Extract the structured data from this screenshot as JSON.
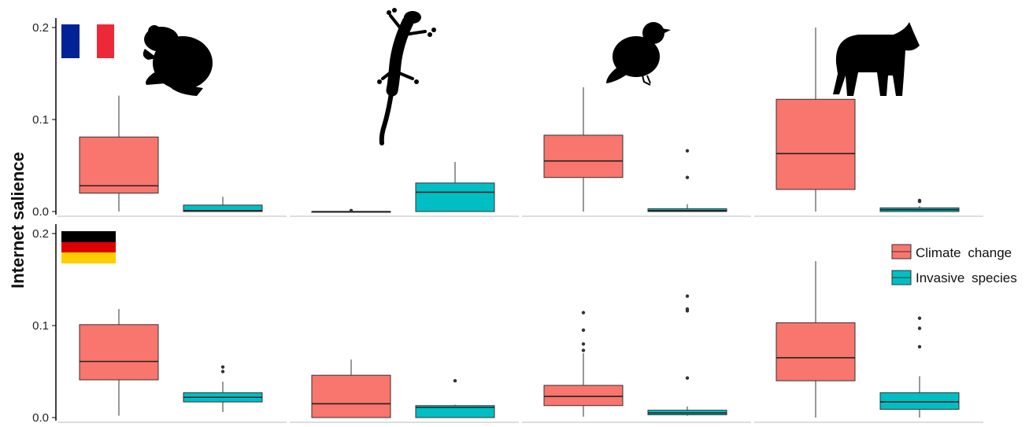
{
  "chart_data": {
    "type": "boxplot",
    "ylabel": "Internet salience",
    "ylim": [
      0,
      0.2
    ],
    "yticks": [
      0.0,
      0.1,
      0.2
    ],
    "ytick_labels": [
      "0.0",
      "0.1",
      "0.2"
    ],
    "colors": {
      "Climate change": "#F8766D",
      "Invasive species": "#00BFC4"
    },
    "legend": {
      "placement": "right, bottom row",
      "entries": [
        "Climate change",
        "Invasive species"
      ]
    },
    "rows": [
      {
        "flag": "France",
        "flag_colors": [
          "#002395",
          "#FFFFFF",
          "#ED2939"
        ]
      },
      {
        "flag": "Germany",
        "flag_colors": [
          "#000000",
          "#DD0000",
          "#FFCE00"
        ]
      }
    ],
    "columns": [
      {
        "icon": "frog-icon"
      },
      {
        "icon": "lizard-icon"
      },
      {
        "icon": "bird-icon"
      },
      {
        "icon": "wolf-icon"
      }
    ],
    "panels": [
      {
        "row": 0,
        "col": 0,
        "boxes": [
          {
            "series": "Climate change",
            "min": 0.0,
            "q1": 0.02,
            "median": 0.028,
            "q3": 0.081,
            "max": 0.126,
            "outliers": []
          },
          {
            "series": "Invasive species",
            "min": 0.0,
            "q1": 0.0,
            "median": 0.001,
            "q3": 0.007,
            "max": 0.016,
            "outliers": []
          }
        ]
      },
      {
        "row": 0,
        "col": 1,
        "boxes": [
          {
            "series": "Climate change",
            "min": 0.0,
            "q1": 0.0,
            "median": 0.0,
            "q3": 0.0,
            "max": 0.0,
            "outliers": [
              0.001
            ]
          },
          {
            "series": "Invasive species",
            "min": 0.0,
            "q1": 0.0,
            "median": 0.021,
            "q3": 0.031,
            "max": 0.054,
            "outliers": []
          }
        ]
      },
      {
        "row": 0,
        "col": 2,
        "boxes": [
          {
            "series": "Climate change",
            "min": 0.0,
            "q1": 0.037,
            "median": 0.055,
            "q3": 0.083,
            "max": 0.135,
            "outliers": []
          },
          {
            "series": "Invasive species",
            "min": 0.0,
            "q1": 0.0,
            "median": 0.001,
            "q3": 0.003,
            "max": 0.008,
            "outliers": [
              0.037,
              0.066
            ]
          }
        ]
      },
      {
        "row": 0,
        "col": 3,
        "boxes": [
          {
            "series": "Climate change",
            "min": 0.0,
            "q1": 0.024,
            "median": 0.063,
            "q3": 0.122,
            "max": 0.2,
            "outliers": []
          },
          {
            "series": "Invasive species",
            "min": 0.0,
            "q1": 0.0,
            "median": 0.002,
            "q3": 0.004,
            "max": 0.006,
            "outliers": [
              0.011,
              0.012
            ]
          }
        ]
      },
      {
        "row": 1,
        "col": 0,
        "boxes": [
          {
            "series": "Climate change",
            "min": 0.002,
            "q1": 0.041,
            "median": 0.061,
            "q3": 0.101,
            "max": 0.118,
            "outliers": []
          },
          {
            "series": "Invasive species",
            "min": 0.006,
            "q1": 0.017,
            "median": 0.022,
            "q3": 0.027,
            "max": 0.039,
            "outliers": [
              0.05,
              0.055
            ]
          }
        ]
      },
      {
        "row": 1,
        "col": 1,
        "boxes": [
          {
            "series": "Climate change",
            "min": 0.0,
            "q1": 0.0,
            "median": 0.015,
            "q3": 0.046,
            "max": 0.063,
            "outliers": []
          },
          {
            "series": "Invasive species",
            "min": 0.0,
            "q1": 0.0,
            "median": 0.011,
            "q3": 0.013,
            "max": 0.014,
            "outliers": [
              0.04
            ]
          }
        ]
      },
      {
        "row": 1,
        "col": 2,
        "boxes": [
          {
            "series": "Climate change",
            "min": 0.001,
            "q1": 0.013,
            "median": 0.023,
            "q3": 0.035,
            "max": 0.07,
            "outliers": [
              0.073,
              0.08,
              0.095,
              0.114
            ]
          },
          {
            "series": "Invasive species",
            "min": 0.002,
            "q1": 0.003,
            "median": 0.005,
            "q3": 0.008,
            "max": 0.012,
            "outliers": [
              0.043,
              0.116,
              0.118,
              0.132
            ]
          }
        ]
      },
      {
        "row": 1,
        "col": 3,
        "boxes": [
          {
            "series": "Climate change",
            "min": 0.0,
            "q1": 0.04,
            "median": 0.065,
            "q3": 0.103,
            "max": 0.17,
            "outliers": []
          },
          {
            "series": "Invasive species",
            "min": 0.0,
            "q1": 0.009,
            "median": 0.017,
            "q3": 0.027,
            "max": 0.045,
            "outliers": [
              0.077,
              0.097,
              0.108
            ]
          }
        ]
      }
    ]
  }
}
